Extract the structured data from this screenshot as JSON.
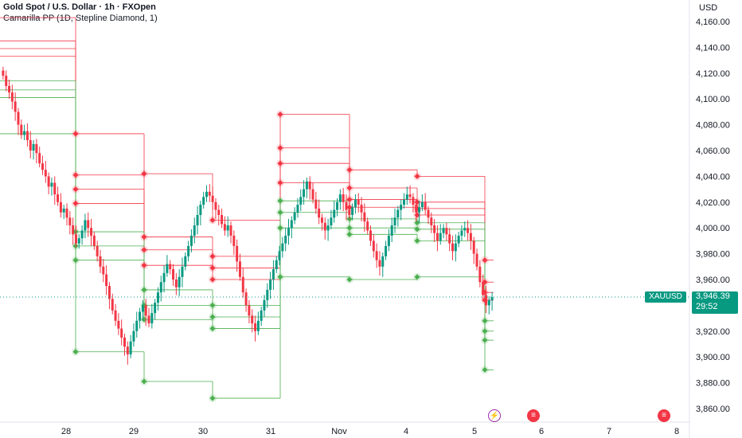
{
  "header": {
    "symbol_line": "Gold Spot / U.S. Dollar · 1h · FXOpen",
    "indicator_line": "Camarilla PP (1D, Stepline Diamond, 1)"
  },
  "price_axis": {
    "currency": "USD",
    "ticks": [
      "4,160.00",
      "4,140.00",
      "4,120.00",
      "4,100.00",
      "4,080.00",
      "4,060.00",
      "4,040.00",
      "4,020.00",
      "4,000.00",
      "3,980.00",
      "3,960.00",
      "3,940.00",
      "3,920.00",
      "3,900.00",
      "3,880.00",
      "3,860.00"
    ]
  },
  "current_price": {
    "symbol": "XAUUSD",
    "price": "3,946.39",
    "countdown": "29:52"
  },
  "events": [
    {
      "icon": "lightning-icon",
      "color": "#9c27b0"
    },
    {
      "icon": "us-flag-icon",
      "color": "#f23645"
    },
    {
      "icon": "us-flag-icon",
      "color": "#f23645"
    }
  ],
  "colors": {
    "up": "#089981",
    "down": "#f23645",
    "resistance": "#f23645",
    "support": "#4caf50"
  },
  "chart_data": {
    "type": "candlestick",
    "title": "Gold Spot / U.S. Dollar · 1h · FXOpen",
    "x_ticks": [
      "28",
      "29",
      "30",
      "31",
      "Nov",
      "4",
      "5",
      "6",
      "7",
      "8"
    ],
    "ylim": [
      3855,
      4170
    ],
    "y_ticks": [
      4160,
      4140,
      4120,
      4100,
      4080,
      4060,
      4040,
      4020,
      4000,
      3980,
      3960,
      3940,
      3920,
      3900,
      3880,
      3860
    ],
    "last_price": 3946.39,
    "candles_close": [
      4118,
      4110,
      4105,
      4098,
      4090,
      4080,
      4072,
      4075,
      4068,
      4060,
      4065,
      4058,
      4050,
      4045,
      4040,
      4032,
      4035,
      4026,
      4020,
      4012,
      4015,
      4008,
      4002,
      3995,
      3988,
      3992,
      3998,
      4006,
      4000,
      3994,
      3986,
      3978,
      3970,
      3964,
      3955,
      3945,
      3936,
      3928,
      3922,
      3915,
      3908,
      3902,
      3912,
      3920,
      3928,
      3935,
      3940,
      3932,
      3926,
      3934,
      3942,
      3950,
      3958,
      3965,
      3972,
      3968,
      3960,
      3954,
      3962,
      3970,
      3978,
      3986,
      3994,
      4002,
      4010,
      4018,
      4024,
      4028,
      4025,
      4020,
      4014,
      4010,
      4003,
      3998,
      4002,
      3994,
      3986,
      3974,
      3962,
      3950,
      3940,
      3932,
      3926,
      3920,
      3928,
      3936,
      3944,
      3952,
      3960,
      3968,
      3975,
      3982,
      3988,
      3994,
      4000,
      4006,
      4012,
      4018,
      4024,
      4030,
      4036,
      4030,
      4022,
      4015,
      4008,
      4004,
      3998,
      4002,
      4008,
      4014,
      4020,
      4026,
      4020,
      4014,
      4010,
      4016,
      4022,
      4018,
      4012,
      4005,
      3998,
      3990,
      3982,
      3975,
      3970,
      3978,
      3986,
      3994,
      4002,
      4008,
      4014,
      4018,
      4022,
      4026,
      4024,
      4018,
      4012,
      4016,
      4020,
      4014,
      4008,
      4002,
      3996,
      3990,
      3996,
      4000,
      3995,
      3988,
      3982,
      3988,
      3994,
      3998,
      4000,
      3996,
      3990,
      3980,
      3970,
      3958,
      3948,
      3940,
      3944,
      3946.39
    ],
    "camarilla_levels": [
      {
        "day": "27",
        "R4": 4163,
        "R3": 4145,
        "R2": 4139,
        "R1": 4133,
        "S1": 4114,
        "S2": 4107,
        "S3": 4101,
        "S4": 4073
      },
      {
        "day": "28",
        "R4": 4073,
        "R3": 4041,
        "R2": 4030,
        "R1": 4019,
        "S1": 3997,
        "S2": 3986,
        "S3": 3975,
        "S4": 3904
      },
      {
        "day": "29",
        "R4": 4042,
        "R3": 3993,
        "R2": 3983,
        "R1": 3971,
        "S1": 3952,
        "S2": 3940,
        "S3": 3929,
        "S4": 3881
      },
      {
        "day": "30",
        "R4": 4006,
        "R3": 3978,
        "R2": 3969,
        "R1": 3960,
        "S1": 3940,
        "S2": 3931,
        "S3": 3922,
        "S4": 3868
      },
      {
        "day": "31",
        "R4": 4088,
        "R3": 4062,
        "R2": 4050,
        "R1": 4035,
        "S1": 4021,
        "S2": 4012,
        "S3": 4000,
        "S4": 3962
      },
      {
        "day": "Nov",
        "R4": 4045,
        "R3": 4031,
        "R2": 4022,
        "R1": 4016,
        "S1": 4007,
        "S2": 4000,
        "S3": 3995,
        "S4": 3960
      },
      {
        "day": "4",
        "R4": 4040,
        "R3": 4020,
        "R2": 4015,
        "R1": 4010,
        "S1": 4004,
        "S2": 3999,
        "S3": 3990,
        "S4": 3962
      },
      {
        "day": "5",
        "R4": 3975,
        "R3": 3958,
        "R2": 3950,
        "R1": 3944,
        "S1": 3928,
        "S2": 3920,
        "S3": 3913,
        "S4": 3890
      }
    ]
  }
}
